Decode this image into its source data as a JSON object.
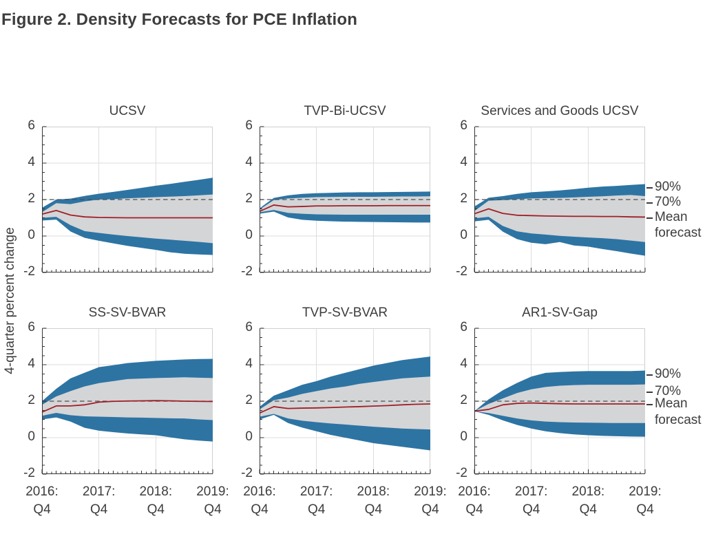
{
  "figure_title": "Figure 2. Density Forecasts for PCE Inflation",
  "y_axis_label": "4-quarter percent change",
  "colors": {
    "band90": "#2d74a3",
    "band70": "#d4d5d7",
    "mean_line": "#a01f26",
    "target_dashed": "#4d4d4d",
    "gridline": "#dedede",
    "frame": "#cfcfcf",
    "spine": "#333333",
    "text": "#3d3d3d"
  },
  "chart_data": [
    {
      "type": "area",
      "title": "UCSV",
      "row": 0,
      "col": 0,
      "ylim": [
        -2,
        6
      ],
      "yticks": [
        6,
        4,
        2,
        0,
        -2
      ],
      "target_line": 2,
      "x_tick_labels": [
        [
          "2016:",
          "Q4"
        ],
        [
          "2017:",
          "Q4"
        ],
        [
          "2018:",
          "Q4"
        ],
        [
          "2019:",
          "Q4"
        ]
      ],
      "series": {
        "mean": [
          1.2,
          1.4,
          1.15,
          1.05,
          1.02,
          1.01,
          1.0,
          1.0,
          1.0,
          1.0,
          1.0,
          1.0,
          1.0
        ],
        "p70_upper": [
          1.3,
          1.8,
          1.75,
          1.9,
          2.0,
          2.02,
          2.07,
          2.1,
          2.13,
          2.16,
          2.19,
          2.23,
          2.28
        ],
        "p70_lower": [
          1.0,
          1.05,
          0.6,
          0.27,
          0.17,
          0.08,
          0.0,
          -0.07,
          -0.14,
          -0.2,
          -0.26,
          -0.32,
          -0.39
        ],
        "p90_upper": [
          1.55,
          2.0,
          2.05,
          2.2,
          2.32,
          2.42,
          2.53,
          2.64,
          2.76,
          2.86,
          2.97,
          3.08,
          3.2
        ],
        "p90_lower": [
          0.85,
          0.9,
          0.25,
          -0.1,
          -0.26,
          -0.4,
          -0.54,
          -0.65,
          -0.76,
          -0.89,
          -0.97,
          -1.01,
          -1.04
        ]
      }
    },
    {
      "type": "area",
      "title": "TVP-Bi-UCSV",
      "row": 0,
      "col": 1,
      "ylim": [
        -2,
        6
      ],
      "yticks": [
        6,
        4,
        2,
        0,
        -2
      ],
      "target_line": 2,
      "x_tick_labels": [
        [
          "2016:",
          "Q4"
        ],
        [
          "2017:",
          "Q4"
        ],
        [
          "2018:",
          "Q4"
        ],
        [
          "2019:",
          "Q4"
        ]
      ],
      "series": {
        "mean": [
          1.35,
          1.7,
          1.6,
          1.62,
          1.65,
          1.65,
          1.66,
          1.66,
          1.66,
          1.67,
          1.67,
          1.67,
          1.67
        ],
        "p70_upper": [
          1.45,
          1.97,
          2.06,
          2.1,
          2.13,
          2.14,
          2.15,
          2.15,
          2.15,
          2.16,
          2.17,
          2.17,
          2.18
        ],
        "p70_lower": [
          1.3,
          1.43,
          1.27,
          1.22,
          1.19,
          1.18,
          1.17,
          1.17,
          1.17,
          1.17,
          1.17,
          1.17,
          1.17
        ],
        "p90_upper": [
          1.52,
          2.09,
          2.23,
          2.31,
          2.35,
          2.37,
          2.39,
          2.4,
          2.4,
          2.41,
          2.42,
          2.43,
          2.44
        ],
        "p90_lower": [
          1.22,
          1.34,
          1.02,
          0.89,
          0.84,
          0.81,
          0.79,
          0.78,
          0.77,
          0.76,
          0.75,
          0.74,
          0.74
        ]
      }
    },
    {
      "type": "area",
      "title": "Services and Goods UCSV",
      "row": 0,
      "col": 2,
      "ylim": [
        -2,
        6
      ],
      "yticks": [
        6,
        4,
        2,
        0,
        -2
      ],
      "target_line": 2,
      "x_tick_labels": [
        [
          "2016:",
          "Q4"
        ],
        [
          "2017:",
          "Q4"
        ],
        [
          "2018:",
          "Q4"
        ],
        [
          "2019:",
          "Q4"
        ]
      ],
      "right_labels": [
        {
          "text": "90%",
          "v": 2.64,
          "tick": true
        },
        {
          "text": "70%",
          "v": 1.81,
          "tick": true
        },
        {
          "text": "Mean",
          "v": 0.98,
          "tick": true
        },
        {
          "text": "forecast",
          "v": 0.11,
          "tick": false
        }
      ],
      "series": {
        "mean": [
          1.22,
          1.49,
          1.24,
          1.14,
          1.12,
          1.1,
          1.09,
          1.08,
          1.08,
          1.07,
          1.07,
          1.05,
          1.04
        ],
        "p70_upper": [
          1.37,
          1.94,
          1.97,
          2.02,
          2.06,
          2.08,
          2.09,
          2.12,
          2.15,
          2.18,
          2.22,
          2.25,
          2.19
        ],
        "p70_lower": [
          0.97,
          1.05,
          0.55,
          0.26,
          0.14,
          0.08,
          0.01,
          -0.04,
          -0.08,
          -0.12,
          -0.17,
          -0.25,
          -0.33
        ],
        "p90_upper": [
          1.62,
          2.1,
          2.19,
          2.31,
          2.4,
          2.45,
          2.5,
          2.57,
          2.65,
          2.71,
          2.75,
          2.8,
          2.85
        ],
        "p90_lower": [
          0.8,
          0.89,
          0.24,
          -0.17,
          -0.37,
          -0.45,
          -0.33,
          -0.52,
          -0.58,
          -0.71,
          -0.83,
          -0.96,
          -1.08
        ]
      }
    },
    {
      "type": "area",
      "title": "SS-SV-BVAR",
      "row": 1,
      "col": 0,
      "ylim": [
        -2,
        6
      ],
      "yticks": [
        6,
        4,
        2,
        0,
        -2
      ],
      "target_line": 2,
      "x_tick_labels": [
        [
          "2016:",
          "Q4"
        ],
        [
          "2017:",
          "Q4"
        ],
        [
          "2018:",
          "Q4"
        ],
        [
          "2019:",
          "Q4"
        ]
      ],
      "series": {
        "mean": [
          1.4,
          1.74,
          1.74,
          1.8,
          1.95,
          1.99,
          2.01,
          2.02,
          2.03,
          2.02,
          2.0,
          1.99,
          1.98
        ],
        "p70_upper": [
          1.8,
          2.26,
          2.55,
          2.81,
          2.99,
          3.1,
          3.21,
          3.24,
          3.27,
          3.29,
          3.31,
          3.29,
          3.27
        ],
        "p70_lower": [
          1.2,
          1.36,
          1.23,
          1.17,
          1.15,
          1.13,
          1.11,
          1.1,
          1.08,
          1.06,
          1.05,
          1.0,
          0.96
        ],
        "p90_upper": [
          2.0,
          2.68,
          3.25,
          3.56,
          3.87,
          3.97,
          4.09,
          4.15,
          4.21,
          4.25,
          4.29,
          4.31,
          4.32
        ],
        "p90_lower": [
          1.0,
          1.11,
          0.88,
          0.54,
          0.38,
          0.3,
          0.23,
          0.18,
          0.13,
          0.02,
          -0.09,
          -0.16,
          -0.21
        ]
      }
    },
    {
      "type": "area",
      "title": "TVP-SV-BVAR",
      "row": 1,
      "col": 1,
      "ylim": [
        -2,
        6
      ],
      "yticks": [
        6,
        4,
        2,
        0,
        -2
      ],
      "target_line": 2,
      "x_tick_labels": [
        [
          "2016:",
          "Q4"
        ],
        [
          "2017:",
          "Q4"
        ],
        [
          "2018:",
          "Q4"
        ],
        [
          "2019:",
          "Q4"
        ]
      ],
      "series": {
        "mean": [
          1.35,
          1.7,
          1.6,
          1.62,
          1.63,
          1.65,
          1.68,
          1.7,
          1.73,
          1.76,
          1.8,
          1.83,
          1.85
        ],
        "p70_upper": [
          1.55,
          2.05,
          2.2,
          2.4,
          2.55,
          2.7,
          2.8,
          2.95,
          3.05,
          3.15,
          3.25,
          3.3,
          3.35
        ],
        "p70_lower": [
          1.15,
          1.3,
          1.05,
          0.93,
          0.85,
          0.78,
          0.72,
          0.66,
          0.6,
          0.55,
          0.5,
          0.47,
          0.45
        ],
        "p90_upper": [
          1.7,
          2.3,
          2.6,
          2.9,
          3.1,
          3.35,
          3.55,
          3.75,
          3.95,
          4.1,
          4.25,
          4.35,
          4.45
        ],
        "p90_lower": [
          1.0,
          1.25,
          0.8,
          0.55,
          0.35,
          0.15,
          0.0,
          -0.15,
          -0.3,
          -0.4,
          -0.5,
          -0.6,
          -0.7
        ]
      }
    },
    {
      "type": "area",
      "title": "AR1-SV-Gap",
      "row": 1,
      "col": 2,
      "ylim": [
        -2,
        6
      ],
      "yticks": [
        6,
        4,
        2,
        0,
        -2
      ],
      "target_line": 2,
      "x_tick_labels": [
        [
          "2016:",
          "Q4"
        ],
        [
          "2017:",
          "Q4"
        ],
        [
          "2018:",
          "Q4"
        ],
        [
          "2019:",
          "Q4"
        ]
      ],
      "right_labels": [
        {
          "text": "90%",
          "v": 3.43,
          "tick": true
        },
        {
          "text": "70%",
          "v": 2.49,
          "tick": true
        },
        {
          "text": "Mean",
          "v": 1.81,
          "tick": true
        },
        {
          "text": "forecast",
          "v": 0.91,
          "tick": false
        }
      ],
      "series": {
        "mean": [
          1.45,
          1.55,
          1.8,
          1.88,
          1.9,
          1.88,
          1.86,
          1.85,
          1.85,
          1.85,
          1.85,
          1.85,
          1.85
        ],
        "p70_upper": [
          1.45,
          1.85,
          2.15,
          2.45,
          2.65,
          2.78,
          2.85,
          2.88,
          2.9,
          2.9,
          2.9,
          2.9,
          2.92
        ],
        "p70_lower": [
          1.45,
          1.35,
          1.2,
          1.05,
          0.95,
          0.88,
          0.85,
          0.83,
          0.82,
          0.81,
          0.8,
          0.8,
          0.8
        ],
        "p90_upper": [
          1.45,
          2.1,
          2.6,
          3.0,
          3.35,
          3.55,
          3.6,
          3.63,
          3.65,
          3.65,
          3.65,
          3.65,
          3.68
        ],
        "p90_lower": [
          1.45,
          1.25,
          0.95,
          0.7,
          0.5,
          0.35,
          0.25,
          0.18,
          0.13,
          0.1,
          0.08,
          0.06,
          0.05
        ]
      }
    }
  ]
}
